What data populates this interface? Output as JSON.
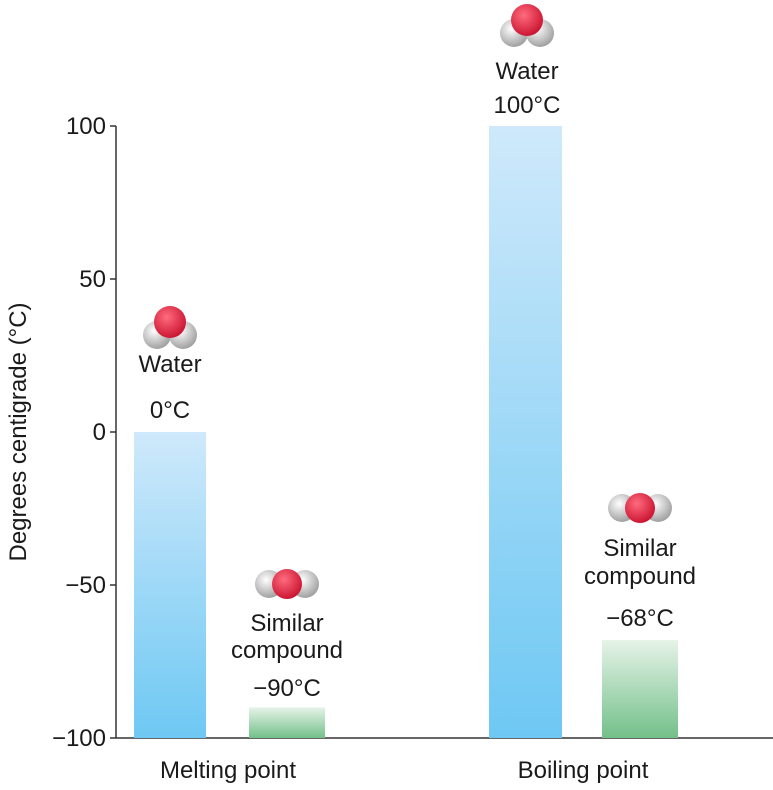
{
  "colors": {
    "water_bar_top": "#cfe9fb",
    "water_bar_bottom": "#6ec8f3",
    "compound_bar_top": "#e6f3e8",
    "compound_bar_bottom": "#73c08a",
    "oxygen": "#c8102e",
    "hydrogen": "#d6d6d6"
  },
  "icons": {
    "water": "water-molecule-icon",
    "compound": "similar-compound-molecule-icon"
  },
  "chart_data": {
    "type": "bar",
    "ylabel": "Degrees centigrade (°C)",
    "ylim": [
      -100,
      100
    ],
    "yticks": [
      {
        "value": 100,
        "label": "100"
      },
      {
        "value": 50,
        "label": "50"
      },
      {
        "value": 0,
        "label": "0"
      },
      {
        "value": -50,
        "label": "−50"
      },
      {
        "value": -100,
        "label": "−100"
      }
    ],
    "categories": [
      "Melting point",
      "Boiling point"
    ],
    "series": [
      {
        "name": "Water",
        "values": [
          0,
          100
        ],
        "labels": [
          "0°C",
          "100°C"
        ]
      },
      {
        "name": "Similar compound",
        "values": [
          -90,
          -68
        ],
        "labels": [
          "−90°C",
          "−68°C"
        ]
      }
    ],
    "annotation_lines": {
      "water": [
        "Water"
      ],
      "compound": [
        "Similar",
        "compound"
      ]
    }
  }
}
